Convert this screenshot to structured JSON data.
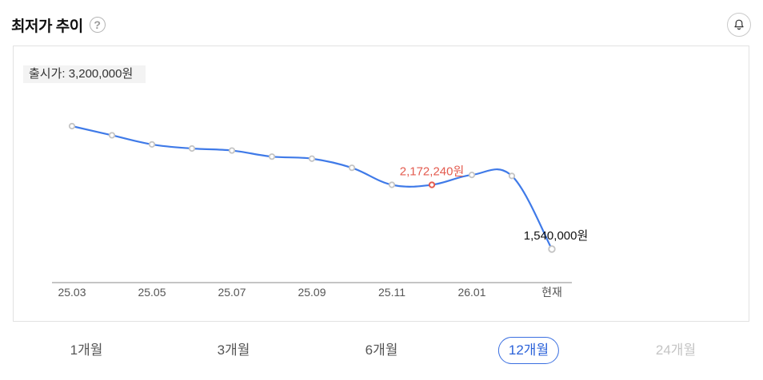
{
  "header": {
    "title": "최저가 추이",
    "help_icon": "?",
    "bell_icon": "bell-icon"
  },
  "release_price_label": "출시가: 3,200,000원",
  "chart_data": {
    "type": "line",
    "x": [
      "25.03",
      "25.04",
      "25.05",
      "25.06",
      "25.07",
      "25.08",
      "25.09",
      "25.10",
      "25.11",
      "25.12",
      "26.01",
      "26.02",
      "현재"
    ],
    "tick_labels": [
      "25.03",
      "25.05",
      "25.07",
      "25.09",
      "25.11",
      "26.01",
      "현재"
    ],
    "series": [
      {
        "values": [
          2750000,
          2660000,
          2570000,
          2530000,
          2510000,
          2450000,
          2430000,
          2340000,
          2172240,
          2172240,
          2270000,
          2260000,
          1540000
        ]
      }
    ],
    "annotations": [
      {
        "x": "25.12",
        "label": "2,172,240원",
        "color": "#e35b4f"
      },
      {
        "x": "현재",
        "label": "1,540,000원",
        "color": "#111111"
      }
    ],
    "line_color": "#3f7ae8",
    "marker_color": "#c4c4c4",
    "highlight_color": "#e35b4f"
  },
  "tabs": [
    {
      "label": "1개월",
      "state": "normal"
    },
    {
      "label": "3개월",
      "state": "normal"
    },
    {
      "label": "6개월",
      "state": "normal"
    },
    {
      "label": "12개월",
      "state": "active"
    },
    {
      "label": "24개월",
      "state": "disabled"
    }
  ]
}
